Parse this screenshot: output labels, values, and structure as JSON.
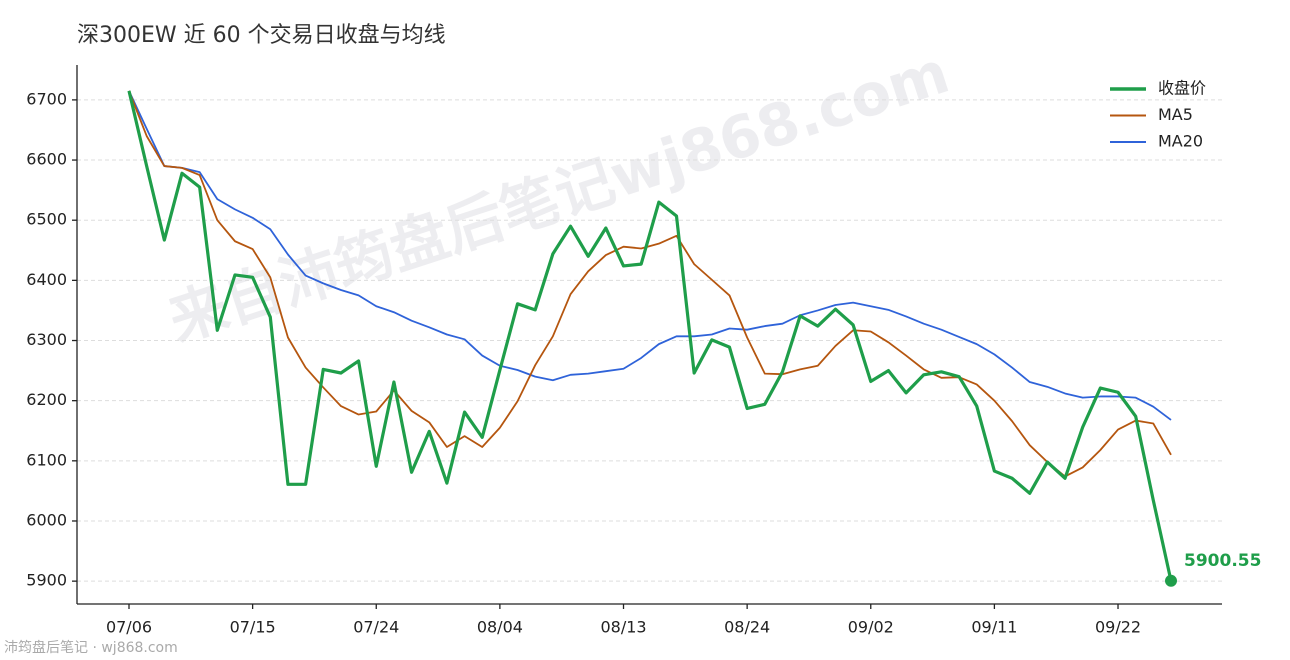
{
  "chart_data": {
    "type": "line",
    "title": "深300EW 近 60 个交易日收盘与均线",
    "watermark": "来自沛筠盘后笔记wj868.com",
    "footer": "沛筠盘后笔记 · wj868.com",
    "categories": [
      "07/06",
      null,
      null,
      null,
      null,
      null,
      null,
      "07/15",
      null,
      null,
      null,
      null,
      null,
      null,
      "07/24",
      null,
      null,
      null,
      null,
      null,
      null,
      "08/04",
      null,
      null,
      null,
      null,
      null,
      null,
      "08/13",
      null,
      null,
      null,
      null,
      null,
      null,
      "08/24",
      null,
      null,
      null,
      null,
      null,
      null,
      "09/02",
      null,
      null,
      null,
      null,
      null,
      null,
      "09/11",
      null,
      null,
      null,
      null,
      null,
      null,
      "09/22",
      null,
      null,
      null
    ],
    "series": [
      {
        "name": "收盘价",
        "color": "#1f9e4a",
        "values": [
          6715,
          6590,
          6467,
          6578,
          6555,
          6317,
          6409,
          6405,
          6339,
          6061,
          6061,
          6252,
          6246,
          6266,
          6091,
          6231,
          6081,
          6149,
          6063,
          6181,
          6139,
          6251,
          6361,
          6351,
          6444,
          6490,
          6440,
          6487,
          6424,
          6427,
          6530,
          6507,
          6246,
          6301,
          6289,
          6187,
          6194,
          6248,
          6341,
          6324,
          6352,
          6326,
          6232,
          6250,
          6213,
          6243,
          6248,
          6240,
          6191,
          6083,
          6071,
          6046,
          6098,
          6071,
          6156,
          6221,
          6214,
          6174,
          6034,
          5900.55
        ]
      },
      {
        "name": "MA5",
        "color": "#b5560f",
        "values": [
          6715,
          6640,
          6590,
          6587,
          6575,
          6500,
          6465,
          6452,
          6405,
          6305,
          6255,
          6222,
          6191,
          6177,
          6182,
          6217,
          6183,
          6164,
          6123,
          6141,
          6123,
          6155,
          6199,
          6259,
          6307,
          6377,
          6415,
          6442,
          6456,
          6453,
          6461,
          6474,
          6427,
          6401,
          6375,
          6305,
          6245,
          6244,
          6252,
          6258,
          6291,
          6317,
          6315,
          6297,
          6275,
          6252,
          6238,
          6239,
          6227,
          6200,
          6166,
          6126,
          6098,
          6074,
          6089,
          6118,
          6152,
          6167,
          6162,
          6110
        ]
      },
      {
        "name": "MA20",
        "color": "#2f63d9",
        "values": [
          6715,
          6652,
          6590,
          6587,
          6580,
          6535,
          6518,
          6504,
          6485,
          6443,
          6408,
          6395,
          6384,
          6375,
          6357,
          6347,
          6333,
          6322,
          6310,
          6302,
          6275,
          6258,
          6251,
          6240,
          6234,
          6243,
          6245,
          6249,
          6253,
          6271,
          6294,
          6307,
          6307,
          6310,
          6320,
          6318,
          6324,
          6328,
          6342,
          6350,
          6359,
          6363,
          6357,
          6351,
          6340,
          6328,
          6318,
          6306,
          6294,
          6277,
          6255,
          6231,
          6223,
          6212,
          6205,
          6207,
          6207,
          6205,
          6190,
          6168
        ]
      }
    ],
    "ylim": [
      5862,
      6758
    ],
    "yticks": [
      5900,
      6000,
      6100,
      6200,
      6300,
      6400,
      6500,
      6600,
      6700
    ],
    "grid": true,
    "legend": "upper right"
  }
}
